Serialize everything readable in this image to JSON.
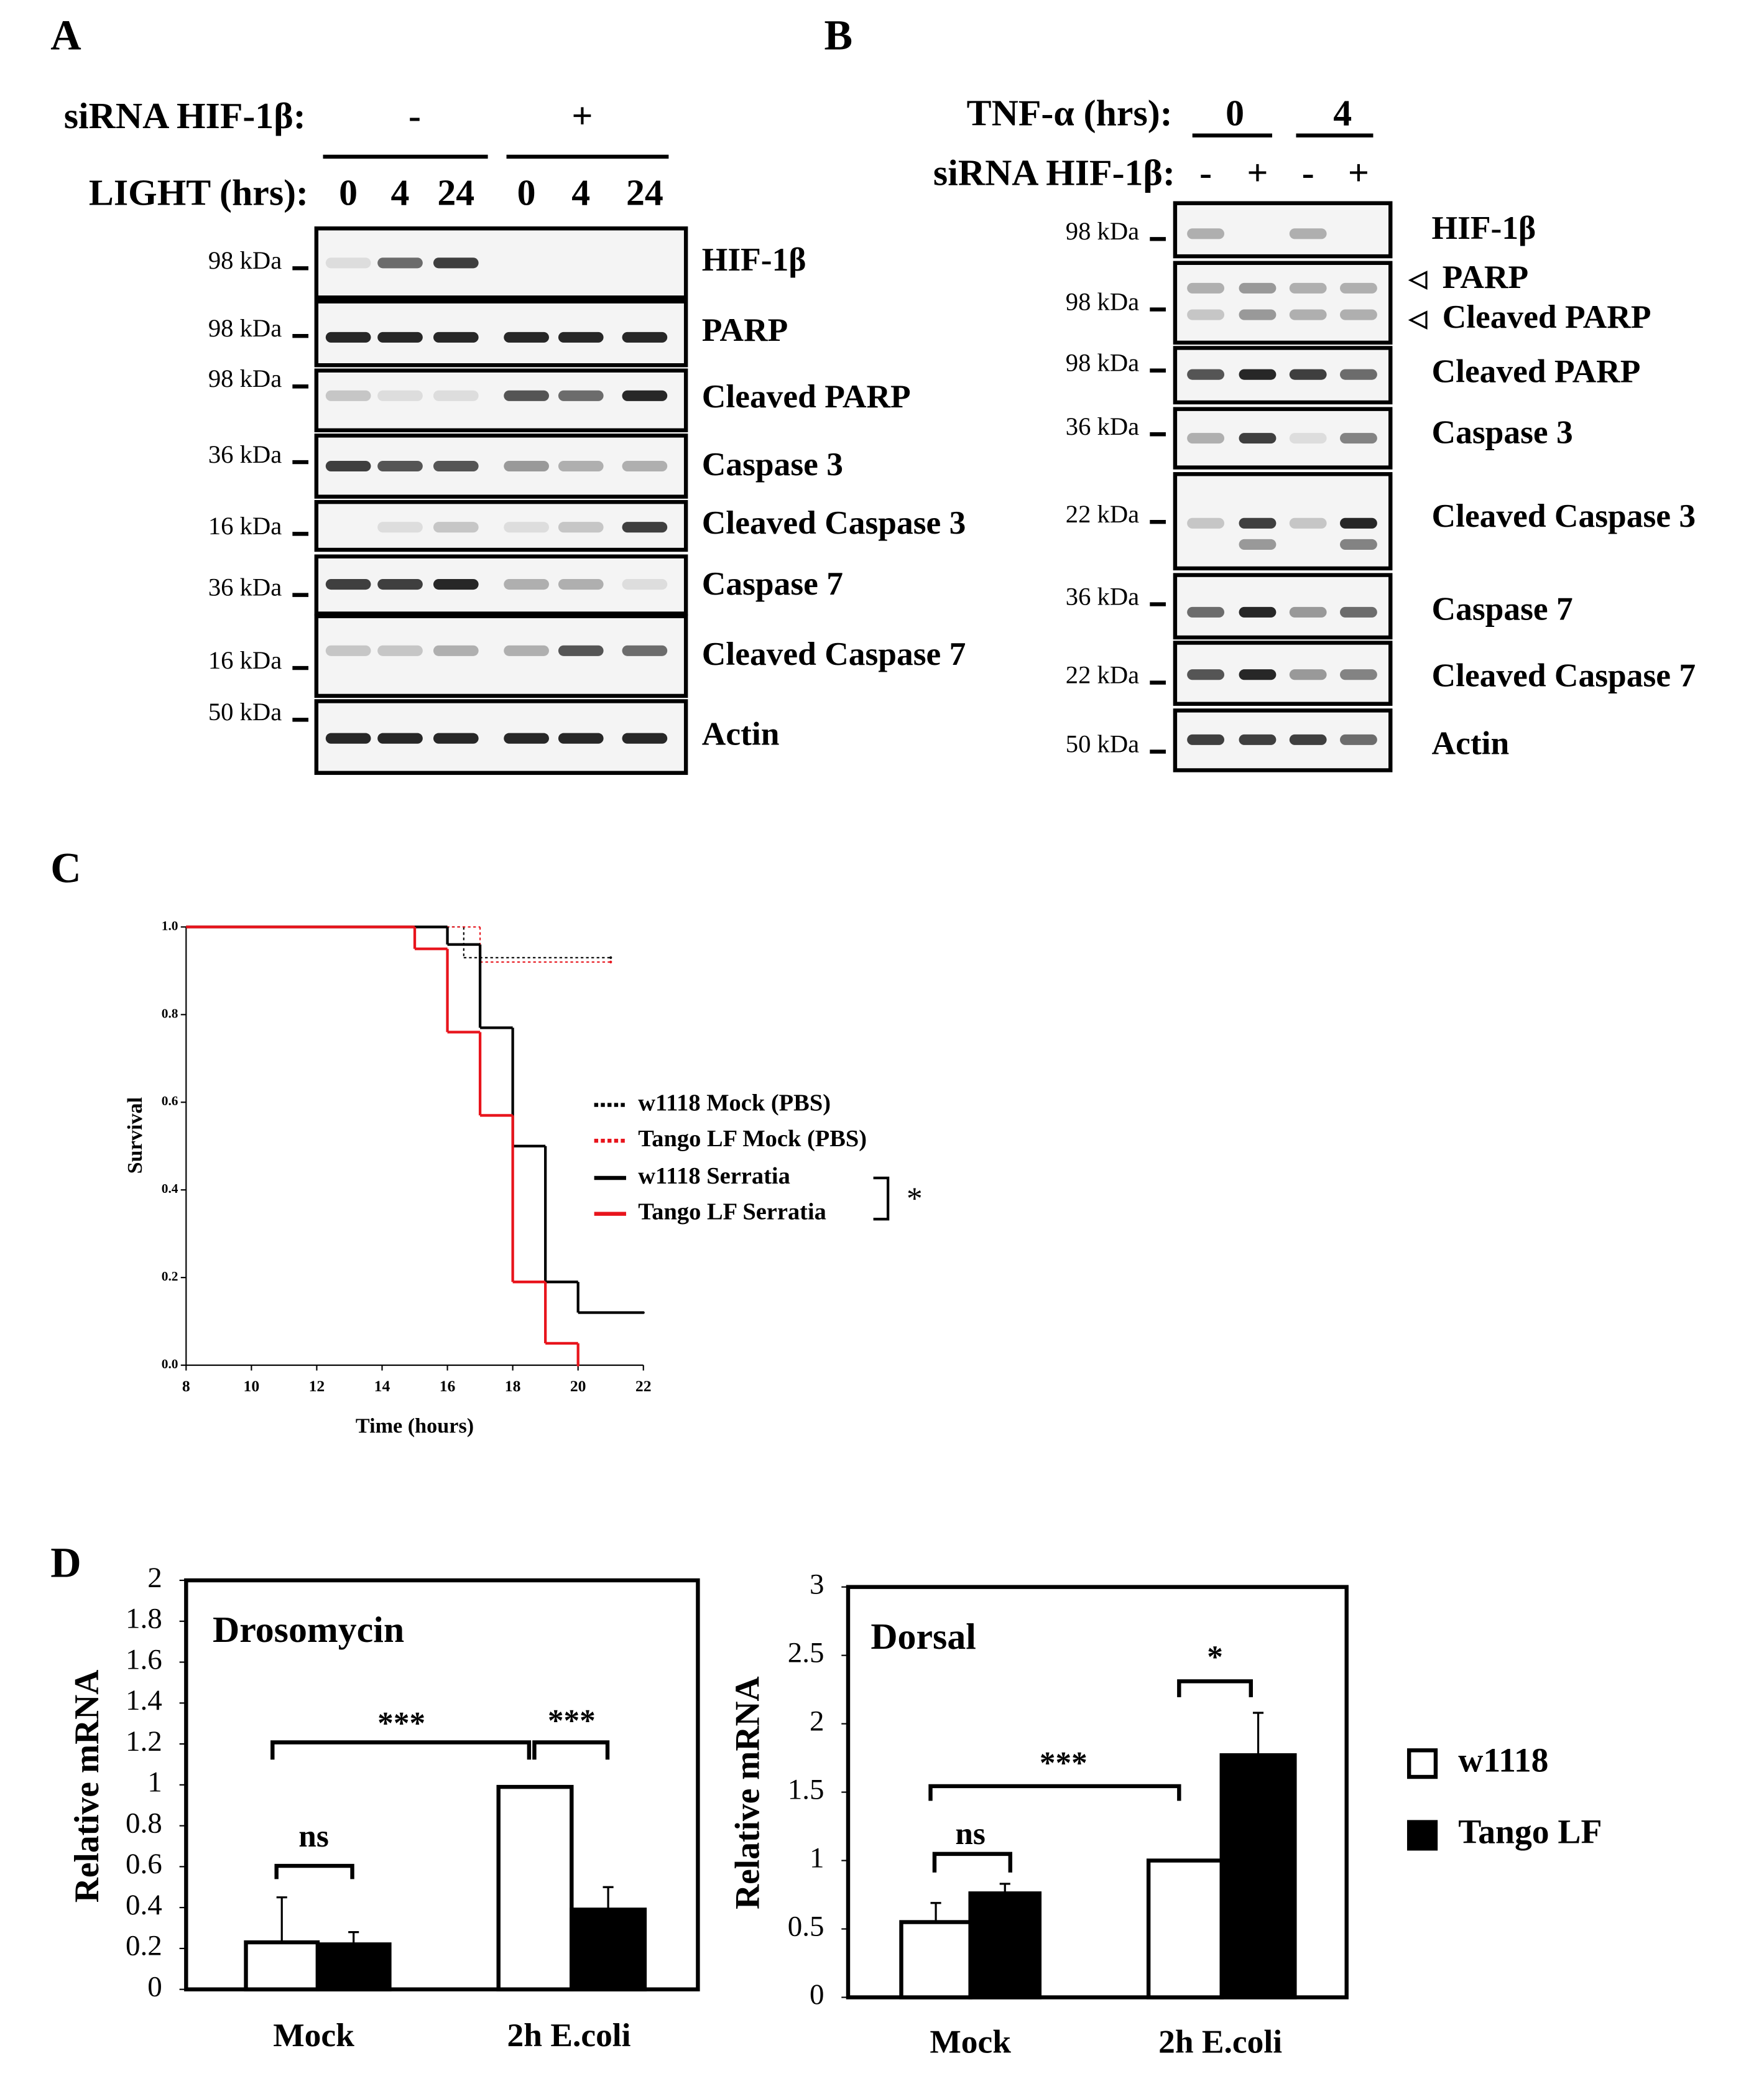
{
  "panel_a": {
    "label": "A",
    "row1_label": "siRNA HIF-1β:",
    "row1_groups": [
      "-",
      "+"
    ],
    "row2_label": "LIGHT (hrs):",
    "row2_lanes": [
      "0",
      "4",
      "24",
      "0",
      "4",
      "24"
    ],
    "blots": [
      {
        "marker": "98 kDa",
        "names": [
          "HIF-1β"
        ]
      },
      {
        "marker": "98 kDa",
        "names": [
          "PARP"
        ]
      },
      {
        "marker": "98 kDa",
        "names": [
          "Cleaved PARP"
        ]
      },
      {
        "marker": "36 kDa",
        "names": [
          "Caspase 3"
        ]
      },
      {
        "marker": "16 kDa",
        "names": [
          "Cleaved Caspase 3"
        ]
      },
      {
        "marker": "36 kDa",
        "names": [
          "Caspase 7"
        ]
      },
      {
        "marker": "16 kDa",
        "names": [
          "Cleaved Caspase 7"
        ]
      },
      {
        "marker": "50 kDa",
        "names": [
          "Actin"
        ]
      }
    ]
  },
  "panel_b": {
    "label": "B",
    "row1_label": "TNF-α (hrs):",
    "row1_groups": [
      "0",
      "4"
    ],
    "row2_label": "siRNA HIF-1β:",
    "row2_lanes": [
      "-",
      "+",
      "-",
      "+"
    ],
    "blots": [
      {
        "marker": "98 kDa",
        "names": [
          "HIF-1β"
        ]
      },
      {
        "marker": "98 kDa",
        "names": [
          "PARP",
          "Cleaved PARP"
        ]
      },
      {
        "marker": "98 kDa",
        "names": [
          "Cleaved PARP"
        ]
      },
      {
        "marker": "36 kDa",
        "names": [
          "Caspase 3"
        ]
      },
      {
        "marker": "22 kDa",
        "names": [
          "Cleaved Caspase 3"
        ]
      },
      {
        "marker": "36 kDa",
        "names": [
          "Caspase 7"
        ]
      },
      {
        "marker": "22 kDa",
        "names": [
          "Cleaved Caspase 7"
        ]
      },
      {
        "marker": "50 kDa",
        "names": [
          "Actin"
        ]
      }
    ]
  },
  "panel_c_label": "C",
  "panel_d_label": "D",
  "chart_data": [
    {
      "type": "step",
      "xlabel": "Time (hours)",
      "ylabel": "Survival",
      "xlim": [
        8,
        22
      ],
      "xticks": [
        8,
        10,
        12,
        14,
        16,
        18,
        20,
        22
      ],
      "ylim": [
        0,
        1
      ],
      "yticks": [
        {
          "value": 0,
          "label": "0.0"
        },
        0.2,
        0.4,
        0.6,
        0.8,
        {
          "value": 1,
          "label": "1.0"
        }
      ],
      "series": [
        {
          "name": "w1118 Mock (PBS)",
          "color": "#000000",
          "style": "dotted",
          "x": [
            8,
            16.5,
            21
          ],
          "values": [
            1,
            0.93,
            0.93
          ]
        },
        {
          "name": "Tango LF Mock (PBS)",
          "color": "#e8141c",
          "style": "dotted",
          "x": [
            8,
            17,
            21
          ],
          "values": [
            1,
            0.92,
            0.92
          ]
        },
        {
          "name": "w1118 Serratia",
          "color": "#000000",
          "style": "solid",
          "x": [
            8,
            16,
            17,
            18,
            19,
            20,
            22
          ],
          "values": [
            1,
            0.96,
            0.77,
            0.5,
            0.19,
            0.12,
            0.12
          ]
        },
        {
          "name": "Tango LF Serratia",
          "color": "#e8141c",
          "style": "solid",
          "x": [
            8,
            15,
            16,
            17,
            18,
            19,
            20
          ],
          "values": [
            1,
            0.95,
            0.76,
            0.57,
            0.19,
            0.05,
            0
          ]
        }
      ],
      "annotations": [
        "*"
      ]
    },
    {
      "type": "bar",
      "title": "Drosomycin",
      "ylabel": "Relative mRNA",
      "categories": [
        "Mock",
        "2h E.coli"
      ],
      "ylim": [
        0,
        2
      ],
      "yticks": [
        0,
        0.2,
        0.4,
        0.6,
        0.8,
        1,
        1.2,
        1.4,
        1.6,
        1.8,
        2
      ],
      "series": [
        {
          "name": "w1118",
          "color": "#ffffff",
          "values": [
            0.23,
            0.99
          ],
          "errors": [
            0.22,
            0
          ]
        },
        {
          "name": "Tango LF",
          "color": "#000000",
          "values": [
            0.22,
            0.39
          ],
          "errors": [
            0.06,
            0.11
          ]
        }
      ],
      "annotations": [
        "ns",
        "***",
        "***"
      ]
    },
    {
      "type": "bar",
      "title": "Dorsal",
      "ylabel": "Relative mRNA",
      "categories": [
        "Mock",
        "2h E.coli"
      ],
      "ylim": [
        0,
        3
      ],
      "yticks": [
        0,
        0.5,
        1,
        1.5,
        2,
        2.5,
        3
      ],
      "series": [
        {
          "color": "#ffffff",
          "values": [
            0.55,
            1
          ],
          "errors": [
            0.14,
            0
          ]
        },
        {
          "color": "#000000",
          "values": [
            0.76,
            1.77
          ],
          "errors": [
            0.07,
            0.31
          ]
        }
      ],
      "annotations": [
        "ns",
        "***",
        "*"
      ]
    }
  ]
}
